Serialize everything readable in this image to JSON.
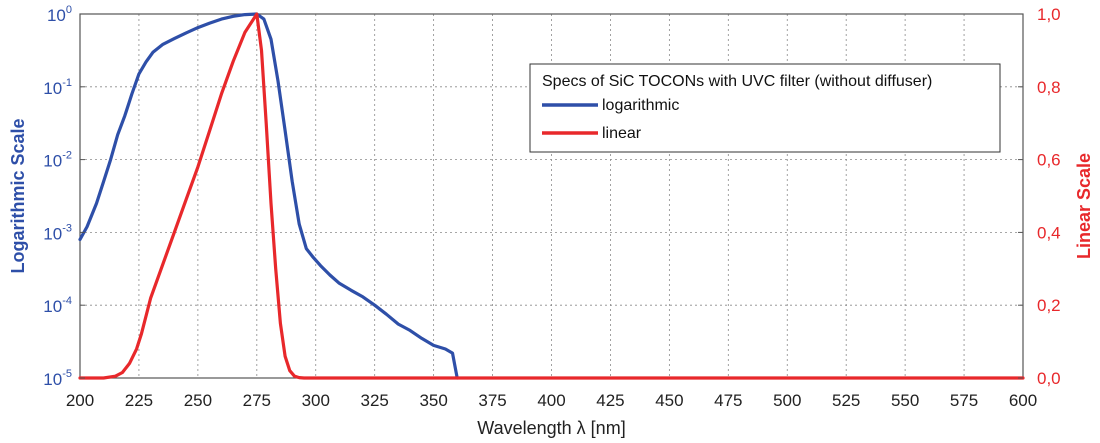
{
  "colors": {
    "log_series": "#2e4fa8",
    "linear_series": "#e8282b",
    "grid": "#8a8a8a",
    "frame": "#555555"
  },
  "chart_data": {
    "type": "line",
    "xlabel": "Wavelength λ [nm]",
    "ylabel_left": "Logarithmic Scale",
    "ylabel_right": "Linear Scale",
    "xlim": [
      200,
      600
    ],
    "ylim_left": [
      1e-05,
      1
    ],
    "yscale_left": "log",
    "ylim_right": [
      0,
      1
    ],
    "grid": true,
    "legend": {
      "title": "Specs of SiC TOCONs with UVC filter (without diffuser)",
      "placement": "top-right"
    },
    "x_ticks": [
      200,
      225,
      250,
      275,
      300,
      325,
      350,
      375,
      400,
      425,
      450,
      475,
      500,
      525,
      550,
      575,
      600
    ],
    "x_tick_labels": [
      "200",
      "225",
      "250",
      "275",
      "300",
      "325",
      "350",
      "375",
      "400",
      "425",
      "450",
      "475",
      "500",
      "525",
      "550",
      "575",
      "600"
    ],
    "y_left_ticks": [
      {
        "value": 1,
        "mantissa": "10",
        "exp": "0"
      },
      {
        "value": 0.1,
        "mantissa": "10",
        "exp": "-1"
      },
      {
        "value": 0.01,
        "mantissa": "10",
        "exp": "-2"
      },
      {
        "value": 0.001,
        "mantissa": "10",
        "exp": "-3"
      },
      {
        "value": 0.0001,
        "mantissa": "10",
        "exp": "-4"
      },
      {
        "value": 1e-05,
        "mantissa": "10",
        "exp": "-5"
      }
    ],
    "y_right_ticks": [
      {
        "value": 1.0,
        "label": "1,0"
      },
      {
        "value": 0.8,
        "label": "0,8"
      },
      {
        "value": 0.6,
        "label": "0,6"
      },
      {
        "value": 0.4,
        "label": "0,4"
      },
      {
        "value": 0.2,
        "label": "0,2"
      },
      {
        "value": 0.0,
        "label": "0,0"
      }
    ],
    "series": [
      {
        "name": "logarithmic",
        "axis": "left",
        "x": [
          200,
          203,
          207,
          210,
          213,
          216,
          219,
          222,
          225,
          228,
          231,
          235,
          240,
          245,
          250,
          255,
          260,
          265,
          270,
          275,
          278,
          281,
          284,
          287,
          290,
          293,
          296,
          299,
          302,
          306,
          310,
          315,
          320,
          325,
          330,
          335,
          340,
          345,
          350,
          355,
          358,
          360
        ],
        "y": [
          0.0008,
          0.0012,
          0.0025,
          0.005,
          0.01,
          0.022,
          0.04,
          0.08,
          0.15,
          0.22,
          0.3,
          0.38,
          0.46,
          0.55,
          0.65,
          0.75,
          0.85,
          0.93,
          0.98,
          1.0,
          0.85,
          0.45,
          0.12,
          0.025,
          0.005,
          0.0013,
          0.0006,
          0.00045,
          0.00035,
          0.00026,
          0.0002,
          0.00016,
          0.00013,
          0.0001,
          7.5e-05,
          5.5e-05,
          4.5e-05,
          3.5e-05,
          2.8e-05,
          2.5e-05,
          2.2e-05,
          1e-05
        ]
      },
      {
        "name": "linear",
        "axis": "right",
        "x": [
          200,
          210,
          215,
          218,
          221,
          224,
          226,
          228,
          230,
          235,
          240,
          245,
          250,
          255,
          260,
          265,
          270,
          275,
          277,
          279,
          281,
          283,
          285,
          287,
          289,
          291,
          293,
          295,
          300,
          350,
          400,
          450,
          500,
          550,
          600
        ],
        "y": [
          0.0,
          0.0,
          0.005,
          0.015,
          0.04,
          0.08,
          0.12,
          0.17,
          0.22,
          0.31,
          0.4,
          0.49,
          0.58,
          0.68,
          0.78,
          0.87,
          0.95,
          1.0,
          0.9,
          0.7,
          0.48,
          0.3,
          0.15,
          0.06,
          0.02,
          0.005,
          0.001,
          0.0,
          0.0,
          0.0,
          0.0,
          0.0,
          0.0,
          0.0,
          0.0
        ]
      }
    ]
  }
}
